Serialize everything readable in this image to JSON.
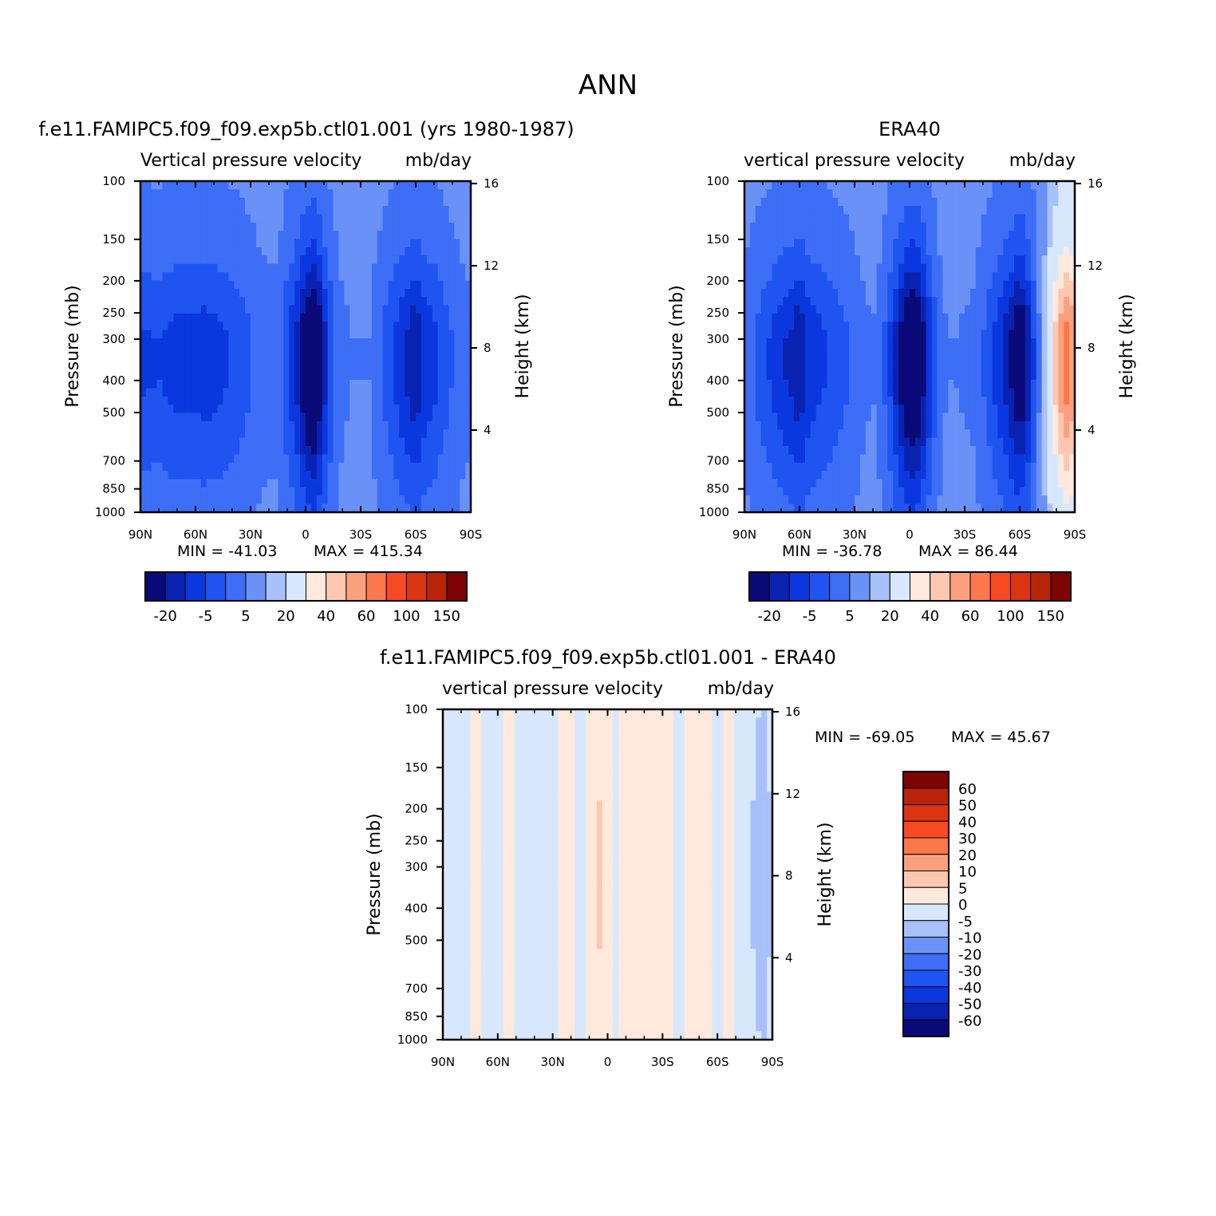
{
  "figure_title": "ANN",
  "colors": {
    "abs_palette": [
      "#0a0a78",
      "#0a22b0",
      "#0b37de",
      "#1f54f0",
      "#3d6ef5",
      "#6991f6",
      "#a8c1fa",
      "#d7e8fd",
      "#fee9dc",
      "#fdc7b0",
      "#fba07e",
      "#fb774c",
      "#f74a22",
      "#da3411",
      "#b92409",
      "#7e0303"
    ],
    "diff_palette": [
      "#0a0a78",
      "#0a22b0",
      "#0b37de",
      "#1f54f0",
      "#3d6ef5",
      "#6991f6",
      "#a8c1fa",
      "#d7e8fd",
      "#fee9dc",
      "#fdc7b0",
      "#fba07e",
      "#fb774c",
      "#f74a22",
      "#da3411",
      "#b92409",
      "#7e0303"
    ]
  },
  "chart_data": [
    {
      "type": "heatmap",
      "title": "f.e11.FAMIPC5.f09_f09.exp5b.ctl01.001 (yrs 1980-1987)",
      "variable_label": "Vertical pressure velocity",
      "units": "mb/day",
      "ylabel": "Pressure (mb)",
      "ylabel_right": "Height (km)",
      "x_ticks": [
        "90N",
        "60N",
        "30N",
        "0",
        "30S",
        "60S",
        "90S"
      ],
      "y_ticks": [
        "100",
        "150",
        "200",
        "250",
        "300",
        "400",
        "500",
        "700",
        "850",
        "1000"
      ],
      "y_right_ticks": [
        "16",
        "12",
        "8",
        "4"
      ],
      "xlim": [
        90,
        -90
      ],
      "ylim": [
        1000,
        100
      ],
      "y_scale": "log",
      "stats": {
        "min": "MIN = -41.03",
        "max": "MAX = 415.34"
      },
      "colorbar_labels": [
        "-20",
        "-5",
        "5",
        "20",
        "40",
        "60",
        "100",
        "150"
      ],
      "field": {
        "lat": [
          90,
          80,
          70,
          65,
          60,
          55,
          45,
          35,
          25,
          20,
          15,
          10,
          5,
          0,
          -5,
          -10,
          -15,
          -20,
          -25,
          -35,
          -40,
          -45,
          -55,
          -60,
          -65,
          -70,
          -75,
          -80,
          -85,
          -90
        ],
        "lev": [
          100,
          150,
          200,
          250,
          300,
          400,
          500,
          700,
          850,
          1000
        ],
        "base": [
          -13,
          -12,
          -14,
          -14,
          -14,
          -15,
          -13,
          -10,
          -5,
          -4,
          -4,
          -12,
          -18,
          -30,
          -35,
          -20,
          -8,
          -3,
          -2,
          -2,
          -6,
          -10,
          -18,
          -22,
          -16,
          -14,
          -10,
          -7,
          -4,
          -3
        ],
        "profile": [
          0.15,
          0.35,
          0.6,
          0.85,
          1.0,
          1.0,
          0.85,
          0.6,
          0.45,
          0.35
        ]
      }
    },
    {
      "type": "heatmap",
      "title": "ERA40",
      "variable_label": "vertical pressure velocity",
      "units": "mb/day",
      "ylabel": "Pressure (mb)",
      "ylabel_right": "Height (km)",
      "x_ticks": [
        "90N",
        "60N",
        "30N",
        "0",
        "30S",
        "60S",
        "90S"
      ],
      "y_ticks": [
        "100",
        "150",
        "200",
        "250",
        "300",
        "400",
        "500",
        "700",
        "850",
        "1000"
      ],
      "y_right_ticks": [
        "16",
        "12",
        "8",
        "4"
      ],
      "xlim": [
        90,
        -90
      ],
      "ylim": [
        1000,
        100
      ],
      "y_scale": "log",
      "stats": {
        "min": "MIN = -36.78",
        "max": "MAX = 86.44"
      },
      "colorbar_labels": [
        "-20",
        "-5",
        "5",
        "20",
        "40",
        "60",
        "100",
        "150"
      ],
      "field": {
        "lat": [
          90,
          80,
          70,
          65,
          60,
          55,
          45,
          35,
          25,
          20,
          15,
          10,
          5,
          0,
          -5,
          -10,
          -15,
          -20,
          -25,
          -35,
          -40,
          -45,
          -55,
          -60,
          -65,
          -70,
          -75,
          -80,
          -85,
          -90
        ],
        "lev": [
          100,
          150,
          200,
          250,
          300,
          400,
          500,
          700,
          850,
          1000
        ],
        "base": [
          -4,
          -10,
          -16,
          -18,
          -22,
          -16,
          -12,
          -8,
          -3,
          -2,
          -5,
          -14,
          -24,
          -34,
          -30,
          -18,
          -6,
          -2,
          -2,
          -3,
          -7,
          -12,
          -22,
          -30,
          -20,
          -4,
          12,
          40,
          60,
          50
        ],
        "profile": [
          0.15,
          0.35,
          0.6,
          0.85,
          1.0,
          1.0,
          0.85,
          0.6,
          0.45,
          0.35
        ]
      }
    },
    {
      "type": "heatmap",
      "title": "f.e11.FAMIPC5.f09_f09.exp5b.ctl01.001 - ERA40",
      "variable_label": "vertical pressure velocity",
      "units": "mb/day",
      "ylabel": "Pressure (mb)",
      "ylabel_right": "Height (km)",
      "x_ticks": [
        "90N",
        "60N",
        "30N",
        "0",
        "30S",
        "60S",
        "90S"
      ],
      "y_ticks": [
        "100",
        "150",
        "200",
        "250",
        "300",
        "400",
        "500",
        "700",
        "850",
        "1000"
      ],
      "y_right_ticks": [
        "16",
        "12",
        "8",
        "4"
      ],
      "xlim": [
        90,
        -90
      ],
      "ylim": [
        1000,
        100
      ],
      "y_scale": "log",
      "stats": {
        "min": "MIN = -69.05",
        "max": "MAX = 45.67"
      },
      "colorbar_labels": [
        "60",
        "50",
        "40",
        "30",
        "20",
        "10",
        "5",
        "0",
        "-5",
        "-10",
        "-20",
        "-30",
        "-40",
        "-50",
        "-60"
      ],
      "field": {
        "lat": [
          90,
          80,
          70,
          65,
          60,
          55,
          45,
          35,
          25,
          20,
          15,
          10,
          5,
          0,
          -5,
          -10,
          -15,
          -20,
          -25,
          -35,
          -40,
          -45,
          -55,
          -60,
          -65,
          -70,
          -75,
          -80,
          -85,
          -90
        ],
        "lev": [
          100,
          150,
          200,
          250,
          300,
          400,
          500,
          700,
          850,
          1000
        ],
        "base": [
          -2,
          -1,
          1,
          -1,
          -2,
          1,
          -1,
          -2,
          1,
          1,
          -1,
          2,
          6,
          3,
          -1,
          2,
          1,
          1,
          2,
          1,
          -1,
          1,
          2,
          -1,
          2,
          -1,
          -3,
          -6,
          -10,
          -4
        ],
        "profile": [
          0.6,
          0.8,
          0.9,
          1.0,
          1.0,
          1.0,
          0.9,
          0.8,
          0.7,
          0.6
        ]
      }
    }
  ]
}
